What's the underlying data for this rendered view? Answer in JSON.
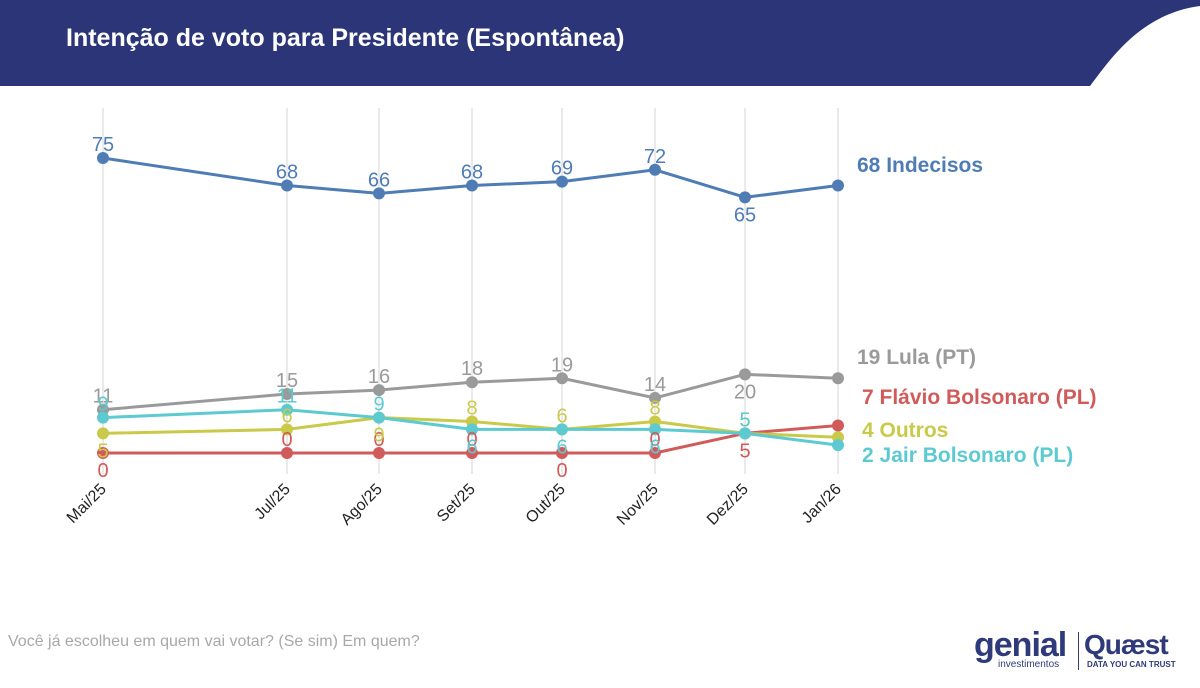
{
  "header": {
    "title": "Intenção de voto para Presidente (Espontânea)",
    "background_color": "#2b3577"
  },
  "footnote": "Você já escolheu em quem vai votar? (Se sim) Em quem?",
  "logos": {
    "genial": "genial",
    "genial_sub": "investimentos",
    "quaest": "Quæst",
    "quaest_sub": "DATA YOU CAN TRUST"
  },
  "chart_data": {
    "type": "line",
    "title": "Intenção de voto para Presidente (Espontânea)",
    "xlabel": "",
    "ylabel": "",
    "categories": [
      "Mai/25",
      "Jul/25",
      "Ago/25",
      "Set/25",
      "Out/25",
      "Nov/25",
      "Dez/25",
      "Jan/26"
    ],
    "ylim": [
      0,
      75
    ],
    "grid": "vertical",
    "legend": "end-labels-right",
    "series": [
      {
        "name": "Indecisos",
        "color": "#4f7cb5",
        "values": [
          75,
          68,
          66,
          68,
          69,
          72,
          65,
          68
        ],
        "point_labels": [
          "75",
          "68",
          "66",
          "68",
          "69",
          "72",
          "65",
          ""
        ],
        "label_pos": [
          "above",
          "above",
          "above",
          "above",
          "above",
          "above",
          "below",
          "above"
        ],
        "end_label": "68 Indecisos"
      },
      {
        "name": "Lula (PT)",
        "color": "#9a9a9a",
        "values": [
          11,
          15,
          16,
          18,
          19,
          14,
          20,
          19
        ],
        "point_labels": [
          "11",
          "15",
          "16",
          "18",
          "19",
          "14",
          "20",
          ""
        ],
        "label_pos": [
          "above",
          "above",
          "above",
          "above",
          "above",
          "above",
          "below",
          "above"
        ],
        "end_label": "19 Lula (PT)"
      },
      {
        "name": "Flávio Bolsonaro (PL)",
        "color": "#d15b5b",
        "values": [
          0,
          0,
          0,
          0,
          0,
          0,
          5,
          7
        ],
        "point_labels": [
          "0",
          "0",
          "0",
          "0",
          "0",
          "0",
          "5",
          ""
        ],
        "label_pos": [
          "below",
          "above",
          "above",
          "above",
          "below",
          "above",
          "below",
          "above"
        ],
        "end_label": "7 Flávio Bolsonaro (PL)"
      },
      {
        "name": "Outros",
        "color": "#c9c94a",
        "values": [
          5,
          6,
          9,
          8,
          6,
          8,
          5,
          4
        ],
        "point_labels": [
          "5",
          "6",
          "9",
          "8",
          "6",
          "8",
          "5",
          ""
        ],
        "label_pos": [
          "below",
          "above",
          "below",
          "above",
          "above",
          "above",
          "above",
          "above"
        ],
        "end_label": "4 Outros"
      },
      {
        "name": "Jair Bolsonaro (PL)",
        "color": "#5ccad0",
        "values": [
          9,
          11,
          9,
          6,
          6,
          6,
          5,
          2
        ],
        "point_labels": [
          "9",
          "11",
          "9",
          "6",
          "6",
          "6",
          "5",
          ""
        ],
        "label_pos": [
          "above",
          "above",
          "above",
          "below",
          "below",
          "below",
          "above",
          "above"
        ],
        "end_label": "2 Jair Bolsonaro (PL)"
      }
    ]
  }
}
